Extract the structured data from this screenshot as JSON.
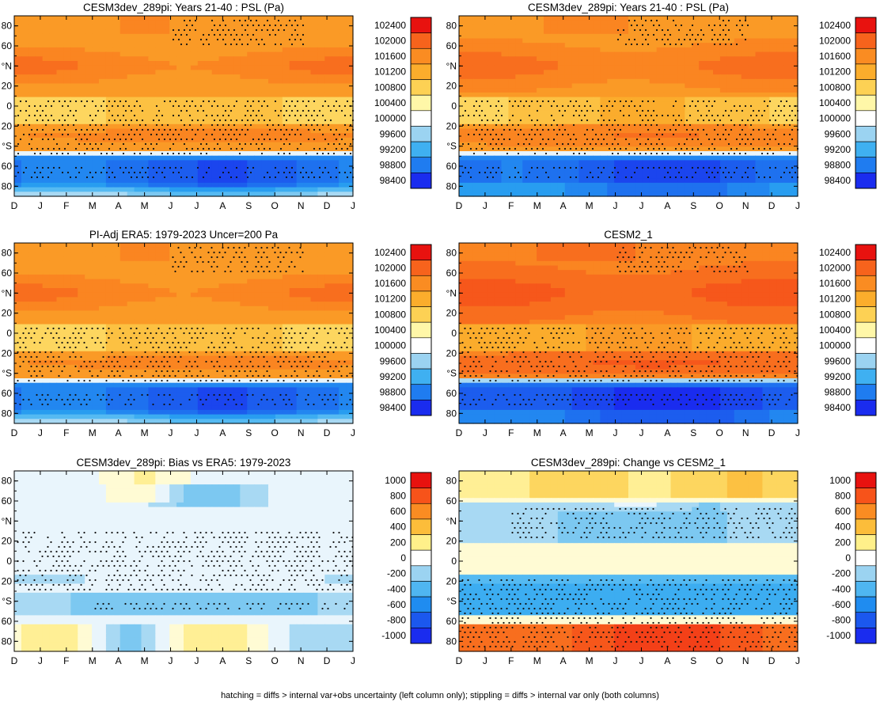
{
  "footer": "hatching = diffs > internal var+obs uncertainty (left column only); stippling = diffs > internal var only (both columns)",
  "chart_data": [
    {
      "id": "p1",
      "type": "heatmap",
      "title": "CESM3dev_289pi: Years 21-40 : PSL (Pa)",
      "xlabels": [
        "D",
        "J",
        "F",
        "M",
        "A",
        "M",
        "J",
        "J",
        "A",
        "S",
        "O",
        "N",
        "D",
        "J"
      ],
      "ylabels": [
        "80",
        "60",
        "°N",
        "20",
        "0",
        "20",
        "°S",
        "60",
        "80"
      ],
      "colorbar": [
        "102400",
        "102000",
        "101600",
        "101200",
        "100800",
        "100400",
        "100000",
        "99600",
        "99200",
        "98800",
        "98400"
      ],
      "field": "psl",
      "zrange": [
        98400,
        102400
      ],
      "variant": "a"
    },
    {
      "id": "p2",
      "type": "heatmap",
      "title": "CESM3dev_289pi: Years 21-40 : PSL (Pa)",
      "xlabels": [
        "D",
        "J",
        "F",
        "M",
        "A",
        "M",
        "J",
        "J",
        "A",
        "S",
        "O",
        "N",
        "D",
        "J"
      ],
      "ylabels": [
        "80",
        "60",
        "°N",
        "20",
        "0",
        "20",
        "°S",
        "60",
        "80"
      ],
      "colorbar": [
        "102400",
        "102000",
        "101600",
        "101200",
        "100800",
        "100400",
        "100000",
        "99600",
        "99200",
        "98800",
        "98400"
      ],
      "field": "psl",
      "zrange": [
        98400,
        102400
      ],
      "variant": "b"
    },
    {
      "id": "p3",
      "type": "heatmap",
      "title": "PI-Adj ERA5: 1979-2023 Uncer=200 Pa",
      "xlabels": [
        "D",
        "J",
        "F",
        "M",
        "A",
        "M",
        "J",
        "J",
        "A",
        "S",
        "O",
        "N",
        "D",
        "J"
      ],
      "ylabels": [
        "80",
        "60",
        "°N",
        "20",
        "0",
        "20",
        "°S",
        "60",
        "80"
      ],
      "colorbar": [
        "102400",
        "102000",
        "101600",
        "101200",
        "100800",
        "100400",
        "100000",
        "99600",
        "99200",
        "98800",
        "98400"
      ],
      "field": "psl",
      "zrange": [
        98400,
        102400
      ],
      "variant": "c"
    },
    {
      "id": "p4",
      "type": "heatmap",
      "title": "CESM2_1",
      "xlabels": [
        "D",
        "J",
        "F",
        "M",
        "A",
        "M",
        "J",
        "J",
        "A",
        "S",
        "O",
        "N",
        "D",
        "J"
      ],
      "ylabels": [
        "80",
        "60",
        "°N",
        "20",
        "0",
        "20",
        "°S",
        "60",
        "80"
      ],
      "colorbar": [
        "102400",
        "102000",
        "101600",
        "101200",
        "100800",
        "100400",
        "100000",
        "99600",
        "99200",
        "98800",
        "98400"
      ],
      "field": "psl",
      "zrange": [
        98400,
        102400
      ],
      "variant": "d"
    },
    {
      "id": "p5",
      "type": "heatmap",
      "title": "CESM3dev_289pi: Bias vs ERA5: 1979-2023",
      "xlabels": [
        "D",
        "J",
        "F",
        "M",
        "A",
        "M",
        "J",
        "J",
        "A",
        "S",
        "O",
        "N",
        "D",
        "J"
      ],
      "ylabels": [
        "80",
        "60",
        "°N",
        "20",
        "0",
        "20",
        "°S",
        "60",
        "80"
      ],
      "colorbar": [
        "1000",
        "800",
        "600",
        "400",
        "200",
        "0",
        "-200",
        "-400",
        "-600",
        "-800",
        "-1000"
      ],
      "field": "bias",
      "zrange": [
        -1000,
        1000
      ],
      "variant": "e"
    },
    {
      "id": "p6",
      "type": "heatmap",
      "title": "CESM3dev_289pi: Change vs CESM2_1",
      "xlabels": [
        "D",
        "J",
        "F",
        "M",
        "A",
        "M",
        "J",
        "J",
        "A",
        "S",
        "O",
        "N",
        "D",
        "J"
      ],
      "ylabels": [
        "80",
        "60",
        "°N",
        "20",
        "0",
        "20",
        "°S",
        "60",
        "80"
      ],
      "colorbar": [
        "1000",
        "800",
        "600",
        "400",
        "200",
        "0",
        "-200",
        "-400",
        "-600",
        "-800",
        "-1000"
      ],
      "field": "change",
      "zrange": [
        -1000,
        1000
      ],
      "variant": "f"
    }
  ]
}
